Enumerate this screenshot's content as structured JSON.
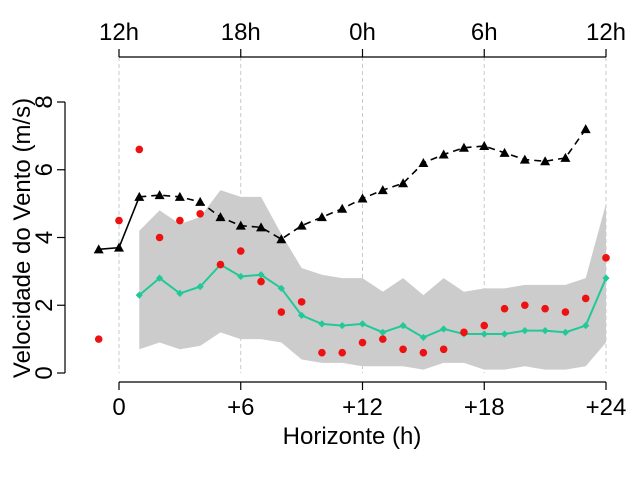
{
  "chart_data": {
    "type": "line",
    "title": "",
    "xlabel": "Horizonte (h)",
    "ylabel": "Velocidade do Vento (m/s)",
    "xlim": [
      -1.8,
      25
    ],
    "ylim": [
      0,
      8
    ],
    "x_ticks": [
      0,
      6,
      12,
      18,
      24
    ],
    "x_tick_labels": [
      "0",
      "+6",
      "+12",
      "+18",
      "+24"
    ],
    "y_ticks": [
      0,
      2,
      4,
      6,
      8
    ],
    "y_tick_labels": [
      "0",
      "2",
      "4",
      "6",
      "8"
    ],
    "top_ticks": [
      0,
      6,
      12,
      18,
      24
    ],
    "top_tick_labels": [
      "12h",
      "18h",
      "0h",
      "6h",
      "12h"
    ],
    "grid": "vertical dashed at x ticks",
    "series": [
      {
        "kind": "band",
        "x": [
          1,
          2,
          3,
          4,
          5,
          6,
          7,
          8,
          9,
          10,
          11,
          12,
          13,
          14,
          15,
          16,
          17,
          18,
          19,
          20,
          21,
          22,
          23,
          24
        ],
        "upper": [
          4.2,
          4.8,
          4.4,
          4.6,
          5.4,
          5.2,
          5.2,
          4.1,
          3.1,
          2.9,
          2.8,
          2.8,
          2.4,
          2.8,
          2.3,
          2.8,
          2.4,
          2.5,
          2.5,
          2.6,
          2.6,
          2.6,
          2.8,
          5.0
        ],
        "lower": [
          0.7,
          0.9,
          0.7,
          0.8,
          1.2,
          1.0,
          1.0,
          0.9,
          0.4,
          0.3,
          0.3,
          0.2,
          0.2,
          0.2,
          0.1,
          0.3,
          0.3,
          0.1,
          0.1,
          0.2,
          0.1,
          0.1,
          0.2,
          0.9
        ],
        "color": "#cccccc"
      },
      {
        "kind": "line-triangle",
        "x": [
          -1,
          0,
          1,
          2,
          3,
          4,
          5,
          6,
          7,
          8,
          9,
          10,
          11,
          12,
          13,
          14,
          15,
          16,
          17,
          18,
          19,
          20,
          21,
          22,
          23,
          24
        ],
        "values": [
          3.65,
          3.7,
          5.2,
          5.25,
          5.2,
          5.05,
          4.6,
          4.35,
          4.3,
          3.95,
          4.35,
          4.6,
          4.85,
          5.15,
          5.4,
          5.6,
          6.2,
          6.45,
          6.65,
          6.7,
          6.5,
          6.3,
          6.25,
          6.35,
          7.2,
          null
        ],
        "color": "#000000"
      },
      {
        "kind": "line-diamond",
        "x": [
          1,
          2,
          3,
          4,
          5,
          6,
          7,
          8,
          9,
          10,
          11,
          12,
          13,
          14,
          15,
          16,
          17,
          18,
          19,
          20,
          21,
          22,
          23,
          24
        ],
        "values": [
          2.3,
          2.8,
          2.35,
          2.55,
          3.2,
          2.85,
          2.9,
          2.5,
          1.7,
          1.45,
          1.4,
          1.45,
          1.2,
          1.4,
          1.05,
          1.3,
          1.15,
          1.15,
          1.15,
          1.25,
          1.25,
          1.2,
          1.4,
          2.8
        ],
        "color": "#20c997"
      },
      {
        "kind": "points",
        "x": [
          -1,
          0,
          1,
          2,
          3,
          4,
          5,
          6,
          7,
          8,
          9,
          10,
          11,
          12,
          13,
          14,
          15,
          16,
          17,
          18,
          19,
          20,
          21,
          22,
          23,
          24
        ],
        "values": [
          1.0,
          4.5,
          6.6,
          4.0,
          4.5,
          4.7,
          3.2,
          3.6,
          2.7,
          1.8,
          2.1,
          0.6,
          0.6,
          0.9,
          1.0,
          0.7,
          0.6,
          0.7,
          1.2,
          1.4,
          1.9,
          2.0,
          1.9,
          1.8,
          2.2,
          3.4
        ],
        "color": "#ee1111"
      }
    ]
  }
}
